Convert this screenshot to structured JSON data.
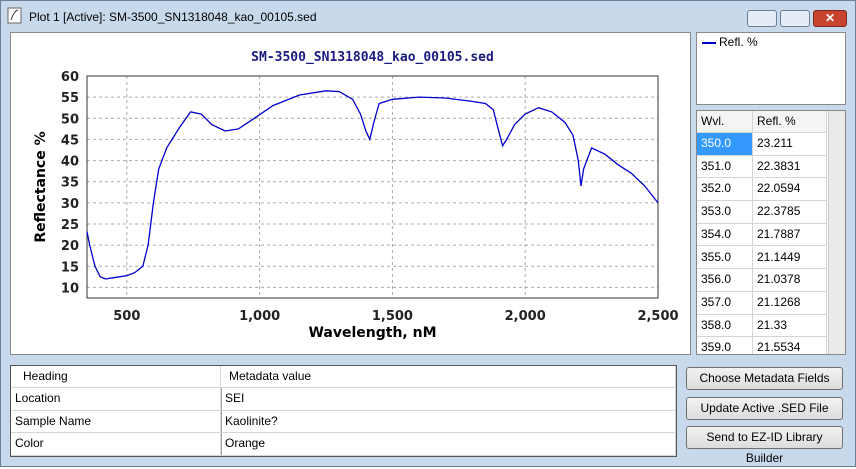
{
  "window": {
    "title": "Plot 1 [Active]: SM-3500_SN1318048_kao_00105.sed"
  },
  "chart_data": {
    "type": "line",
    "title": "SM-3500_SN1318048_kao_00105.sed",
    "x_label": "Wavelength, nM",
    "y_label": "Reflectance %",
    "x": [
      350,
      360,
      380,
      400,
      420,
      450,
      500,
      530,
      560,
      580,
      600,
      620,
      650,
      700,
      740,
      780,
      820,
      870,
      920,
      980,
      1050,
      1150,
      1250,
      1300,
      1350,
      1380,
      1400,
      1415,
      1430,
      1450,
      1500,
      1600,
      1700,
      1800,
      1850,
      1880,
      1900,
      1915,
      1930,
      1960,
      2000,
      2050,
      2100,
      2150,
      2180,
      2200,
      2210,
      2220,
      2250,
      2300,
      2350,
      2400,
      2450,
      2500
    ],
    "series": [
      {
        "name": "Refl. %",
        "color": "#0000cc",
        "values": [
          23.2,
          20,
          15,
          12.5,
          12,
          12.3,
          12.8,
          13.5,
          15,
          20,
          30,
          38,
          43,
          48,
          51.5,
          51,
          48.5,
          47,
          47.5,
          50,
          53,
          55.5,
          56.5,
          56.3,
          54.5,
          51,
          47,
          45,
          49,
          53.5,
          54.5,
          55,
          54.8,
          54,
          53.5,
          52,
          47,
          43.5,
          45,
          48.5,
          51,
          52.5,
          51.5,
          49,
          46,
          40,
          34,
          38,
          43,
          41.5,
          39,
          37,
          34,
          30
        ]
      }
    ],
    "xlim": [
      350,
      2500
    ],
    "ylim": [
      7.5,
      60
    ],
    "xticks": [
      500,
      {
        "value": 1000,
        "label": "1,000"
      },
      {
        "value": 1500,
        "label": "1,500"
      },
      {
        "value": 2000,
        "label": "2,000"
      },
      {
        "value": 2500,
        "label": "2,500"
      }
    ],
    "yticks": [
      10,
      15,
      20,
      25,
      30,
      35,
      40,
      45,
      50,
      55,
      60
    ],
    "grid": true
  },
  "table": {
    "columns": [
      "Wvl.",
      "Refl. %"
    ],
    "rows": [
      [
        "350.0",
        "23.211"
      ],
      [
        "351.0",
        "22.3831"
      ],
      [
        "352.0",
        "22.0594"
      ],
      [
        "353.0",
        "22.3785"
      ],
      [
        "354.0",
        "21.7887"
      ],
      [
        "355.0",
        "21.1449"
      ],
      [
        "356.0",
        "21.0378"
      ],
      [
        "357.0",
        "21.1268"
      ],
      [
        "358.0",
        "21.33"
      ],
      [
        "359.0",
        "21.5534"
      ]
    ]
  },
  "metadata": {
    "columns": [
      "Heading",
      "Metadata value"
    ],
    "rows": [
      [
        "Location",
        "SEI"
      ],
      [
        "Sample Name",
        "Kaolinite?"
      ],
      [
        "Color",
        "Orange"
      ]
    ]
  },
  "buttons": [
    "Choose Metadata Fields",
    "Update Active .SED File",
    "Send to EZ-ID Library Builder"
  ]
}
